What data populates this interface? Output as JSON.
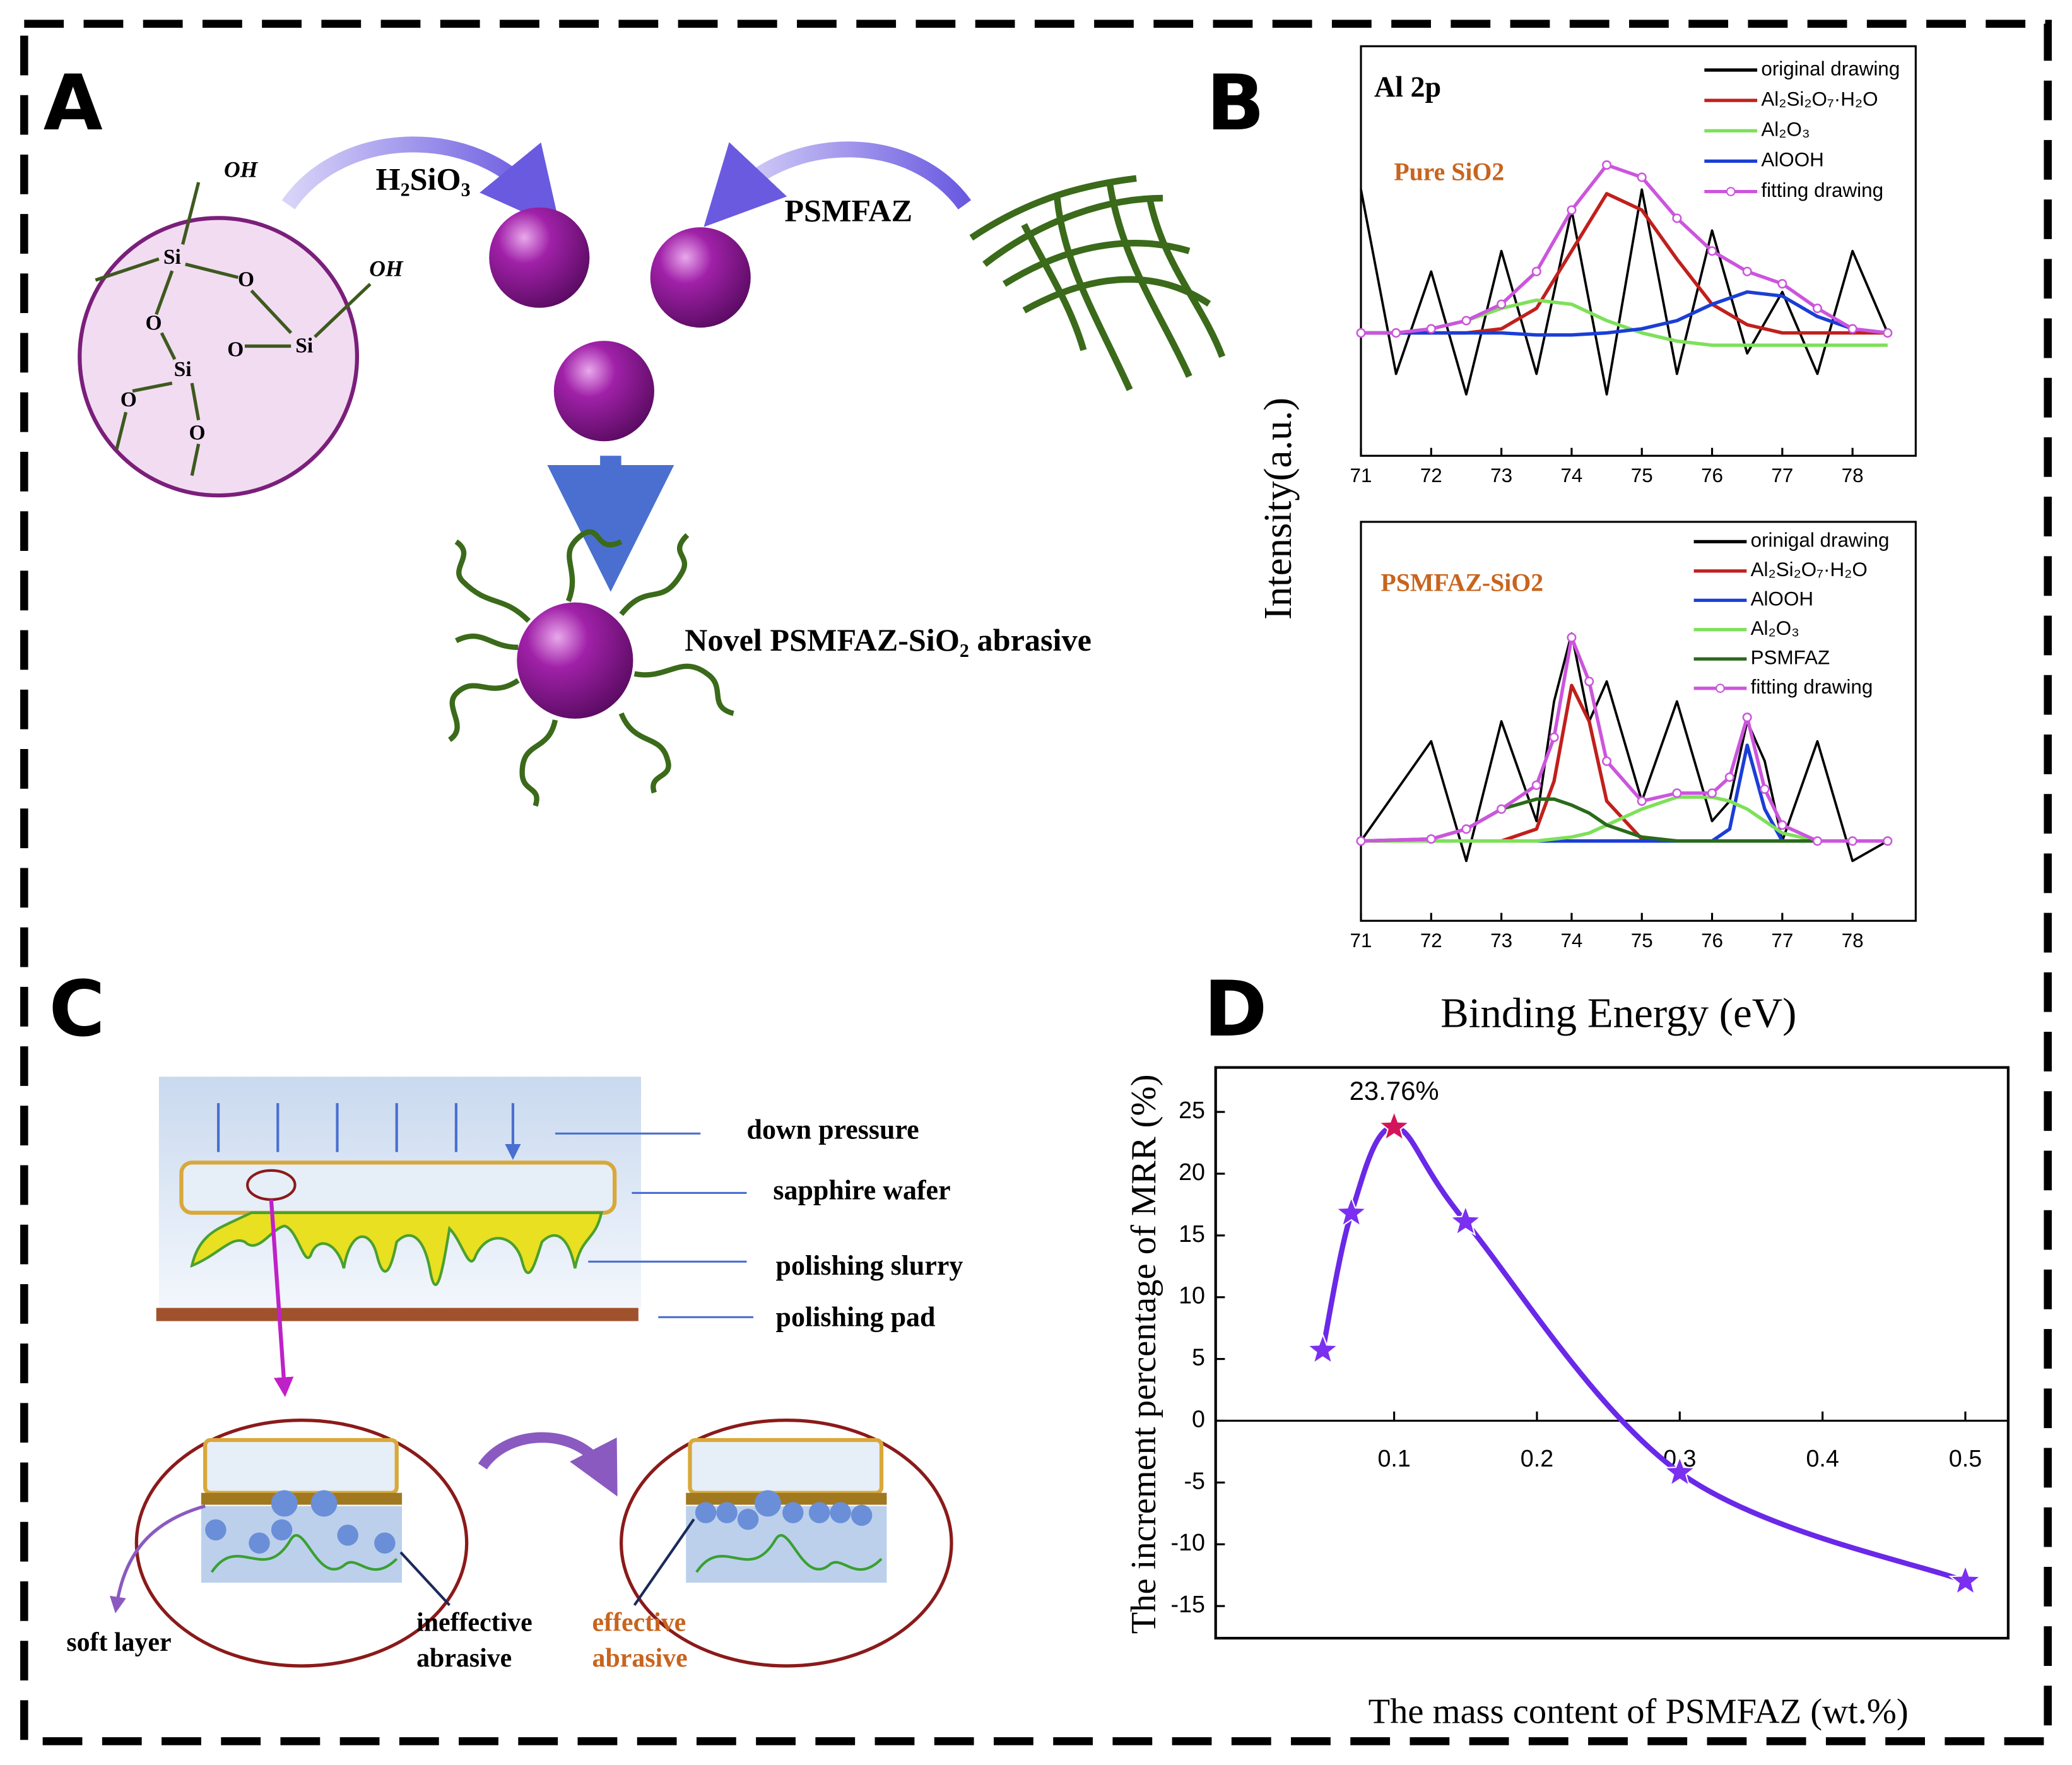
{
  "figure_labels": [
    "A",
    "B",
    "C",
    "D"
  ],
  "panel_a": {
    "atoms": [
      "OH",
      "OH",
      "Si",
      "O",
      "O",
      "O",
      "Si",
      "Si",
      "O",
      "O"
    ],
    "reagent_left": "H₂SiO₃",
    "reagent_right": "PSMFAZ",
    "product": "Novel PSMFAZ-SiO₂ abrasive"
  },
  "panel_b": {
    "y_label": "Intensity(a.u.)",
    "x_label": "Binding Energy (eV)"
  },
  "panel_c": {
    "labels": [
      "down pressure",
      "sapphire wafer",
      "polishing slurry",
      "polishing pad"
    ],
    "soft_layer": "soft layer",
    "ineffective": [
      "ineffective",
      "abrasive"
    ],
    "effective": [
      "effective",
      "abrasive"
    ]
  },
  "chart_data": [
    {
      "type": "line",
      "title": "Al 2p",
      "annotation": "Pure SiO2",
      "legend": "upper right",
      "x": [
        71,
        71.5,
        72,
        72.5,
        73,
        73.5,
        74,
        74.5,
        75,
        75.5,
        76,
        76.5,
        77,
        77.5,
        78,
        78.5
      ],
      "xlim": [
        71,
        78.9
      ],
      "xticks": [
        71,
        72,
        73,
        74,
        75,
        76,
        77,
        78
      ],
      "ylim": [
        0,
        10
      ],
      "series": [
        {
          "name": "original drawing",
          "color": "#000000",
          "values": [
            6.5,
            2,
            4.5,
            1.5,
            5,
            2,
            6,
            1.5,
            6.5,
            2,
            5.5,
            2.5,
            4,
            2,
            5,
            3
          ]
        },
        {
          "name": "Al₂Si₂O₇·H₂O",
          "color": "#c0201c",
          "values": [
            3,
            3,
            3,
            3,
            3.1,
            3.6,
            5,
            6.4,
            6,
            4.8,
            3.7,
            3.2,
            3,
            3,
            3,
            3
          ]
        },
        {
          "name": "Al₂O₃",
          "color": "#7ee05a",
          "values": [
            3,
            3,
            3.1,
            3.3,
            3.6,
            3.8,
            3.7,
            3.3,
            3,
            2.8,
            2.7,
            2.7,
            2.7,
            2.7,
            2.7,
            2.7
          ]
        },
        {
          "name": "AlOOH",
          "color": "#1a3ed6",
          "values": [
            3,
            3,
            3,
            3,
            3,
            2.95,
            2.95,
            3,
            3.1,
            3.3,
            3.7,
            4,
            3.9,
            3.4,
            3.1,
            3
          ]
        },
        {
          "name": "fitting drawing",
          "color": "#cc55dd",
          "markers": true,
          "values": [
            3,
            3,
            3.1,
            3.3,
            3.7,
            4.5,
            6,
            7.1,
            6.8,
            5.8,
            5,
            4.5,
            4.2,
            3.6,
            3.1,
            3
          ]
        }
      ]
    },
    {
      "type": "line",
      "annotation": "PSMFAZ-SiO2",
      "legend": "upper right",
      "x": [
        71,
        72,
        72.5,
        73,
        73.5,
        73.75,
        74,
        74.25,
        74.5,
        75,
        75.5,
        76,
        76.25,
        76.5,
        76.75,
        77,
        77.5,
        78,
        78.5
      ],
      "xlim": [
        71,
        78.9
      ],
      "xticks": [
        71,
        72,
        73,
        74,
        75,
        76,
        77,
        78
      ],
      "ylim": [
        0,
        10
      ],
      "series": [
        {
          "name": "orinigal drawing",
          "color": "#000000",
          "values": [
            2,
            4.5,
            1.5,
            5,
            2.5,
            5.5,
            7.2,
            5,
            6,
            3,
            5.5,
            2.5,
            3,
            5,
            4,
            2,
            4.5,
            1.5,
            2
          ]
        },
        {
          "name": "Al₂Si₂O₇·H₂O",
          "color": "#c0201c",
          "values": [
            2,
            2,
            2,
            2,
            2.3,
            3.5,
            5.9,
            5,
            3,
            2.05,
            2,
            2,
            2,
            2,
            2,
            2,
            2,
            2,
            2
          ]
        },
        {
          "name": "AlOOH",
          "color": "#1a3ed6",
          "values": [
            2,
            2,
            2,
            2,
            2,
            2,
            2,
            2,
            2,
            2,
            2,
            2,
            2.3,
            4.4,
            2.8,
            2,
            2,
            2,
            2
          ]
        },
        {
          "name": "Al₂O₃",
          "color": "#7ee05a",
          "values": [
            2,
            2,
            2,
            2,
            2,
            2.05,
            2.1,
            2.2,
            2.4,
            2.8,
            3.1,
            3.1,
            3,
            2.8,
            2.5,
            2.2,
            2,
            2,
            2
          ]
        },
        {
          "name": "PSMFAZ",
          "color": "#2a6a1a",
          "values": [
            2,
            2.05,
            2.3,
            2.8,
            3.05,
            3.05,
            2.9,
            2.7,
            2.4,
            2.1,
            2,
            2,
            2,
            2,
            2,
            2,
            2,
            2,
            2
          ]
        },
        {
          "name": "fitting drawing",
          "color": "#cc55dd",
          "markers": true,
          "values": [
            2,
            2.05,
            2.3,
            2.8,
            3.4,
            4.6,
            7.1,
            6,
            4,
            3,
            3.2,
            3.2,
            3.6,
            5.1,
            3.3,
            2.4,
            2,
            2,
            2
          ]
        }
      ]
    },
    {
      "type": "line",
      "curve": "smooth",
      "marker": "star",
      "color": "#6a28e8",
      "xlabel": "The mass content of PSMFAZ (wt.%)",
      "ylabel": "The increment percentage of MRR (%)",
      "x": [
        0.05,
        0.07,
        0.1,
        0.15,
        0.3,
        0.5
      ],
      "values": [
        5.7,
        16.8,
        23.76,
        16.1,
        -4.2,
        -13
      ],
      "value_labels": [
        null,
        null,
        "23.76%",
        null,
        null,
        null
      ],
      "marker_colors": [
        "#7b2ff0",
        "#7b2ff0",
        "#d4145a",
        "#7b2ff0",
        "#7b2ff0",
        "#7b2ff0"
      ],
      "xlim": [
        -0.025,
        0.53
      ],
      "ylim": [
        -17.6,
        28.6
      ],
      "xticks": [
        0.1,
        0.2,
        0.3,
        0.4,
        0.5
      ],
      "yticks": [
        -15,
        -10,
        -5,
        0,
        5,
        10,
        15,
        20,
        25
      ]
    }
  ]
}
